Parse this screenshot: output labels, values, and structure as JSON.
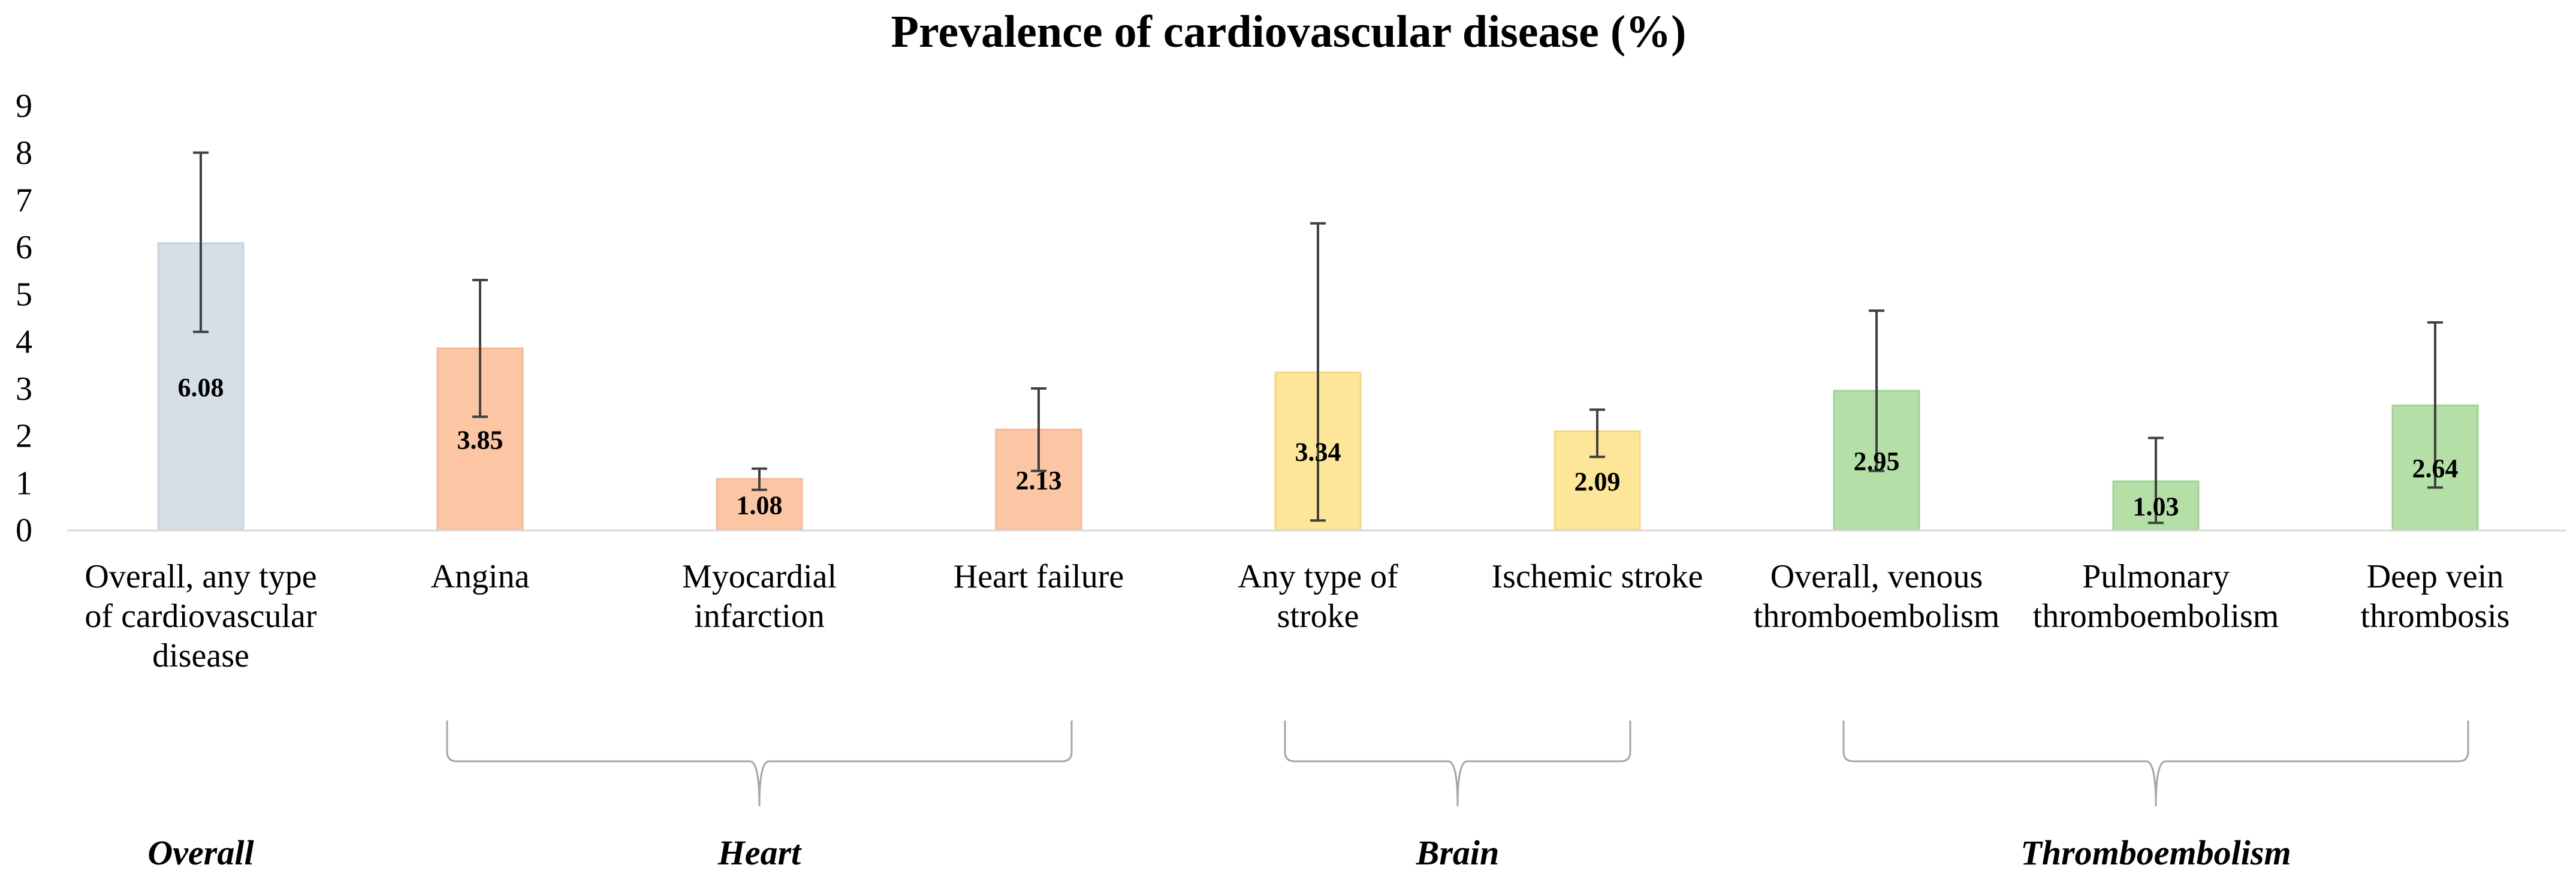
{
  "chart_data": {
    "type": "bar",
    "title": "Prevalence of cardiovascular  disease (%)",
    "xlabel": "",
    "ylabel": "",
    "ylim": [
      0,
      9
    ],
    "yticks": [
      "0",
      "1",
      "2",
      "3",
      "4",
      "5",
      "6",
      "7",
      "8",
      "9"
    ],
    "grid": false,
    "legend": "none",
    "categories": [
      "Overall, any type of cardiovascular disease",
      "Angina",
      "Myocardial infarction",
      "Heart failure",
      "Any type of stroke",
      "Ischemic stroke",
      "Overall, venous thromboembolism",
      "Pulmonary thromboembolism",
      "Deep vein thrombosis"
    ],
    "category_lines": [
      [
        "Overall, any type",
        "of cardiovascular",
        "disease"
      ],
      [
        "Angina"
      ],
      [
        "Myocardial",
        "infarction"
      ],
      [
        "Heart failure"
      ],
      [
        "Any type of",
        "stroke"
      ],
      [
        "Ischemic stroke"
      ],
      [
        "Overall, venous",
        "thromboembolism"
      ],
      [
        "Pulmonary",
        "thromboembolism"
      ],
      [
        "Deep vein",
        "thrombosis"
      ]
    ],
    "values": [
      6.08,
      3.85,
      1.08,
      2.13,
      3.34,
      2.09,
      2.95,
      1.03,
      2.64
    ],
    "value_labels": [
      "6.08",
      "3.85",
      "1.08",
      "2.13",
      "3.34",
      "2.09",
      "2.95",
      "1.03",
      "2.64"
    ],
    "ci_lower": [
      4.2,
      2.4,
      0.85,
      1.25,
      0.2,
      1.55,
      1.25,
      0.15,
      0.9
    ],
    "ci_upper": [
      8.0,
      5.3,
      1.3,
      3.0,
      6.5,
      2.55,
      4.65,
      1.95,
      4.4
    ],
    "group_of": [
      0,
      1,
      1,
      1,
      2,
      2,
      3,
      3,
      3
    ],
    "colors": [
      "#d5dfe8",
      "#fcc6a4",
      "#fcc6a4",
      "#fcc6a4",
      "#fde697",
      "#fde697",
      "#b4dfa7",
      "#b4dfa7",
      "#b4dfa7"
    ],
    "border_colors": [
      "#c6d3df",
      "#f8b894",
      "#f8b894",
      "#f8b894",
      "#f6d97c",
      "#f6d97c",
      "#a2d393",
      "#a2d393",
      "#a2d393"
    ],
    "groups": [
      {
        "name": "Overall",
        "bracket": false
      },
      {
        "name": "Heart",
        "bracket": true
      },
      {
        "name": "Brain",
        "bracket": true
      },
      {
        "name": "Thromboembolism",
        "bracket": true
      }
    ]
  }
}
